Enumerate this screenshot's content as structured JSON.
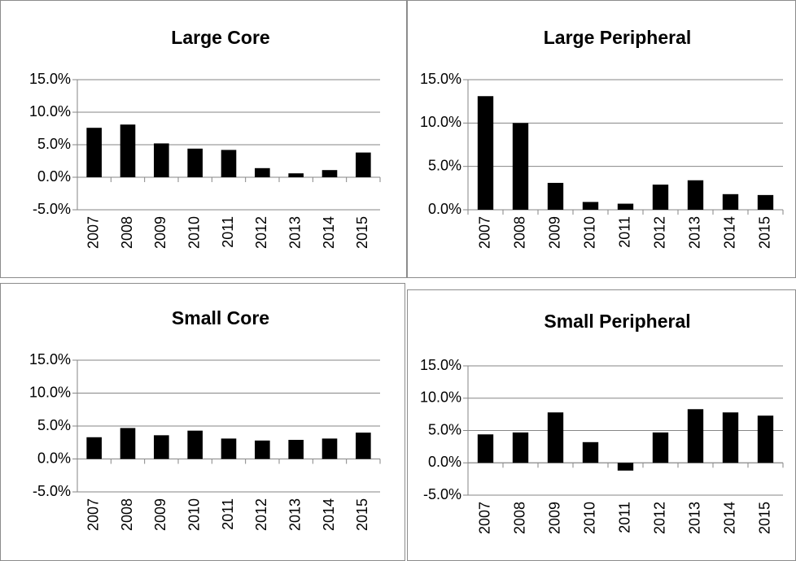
{
  "chart_data": [
    {
      "type": "bar",
      "title": "Large Core",
      "categories": [
        "2007",
        "2008",
        "2009",
        "2010",
        "2011",
        "2012",
        "2013",
        "2014",
        "2015"
      ],
      "values": [
        7.6,
        8.1,
        5.2,
        4.4,
        4.2,
        1.4,
        0.6,
        1.1,
        3.8
      ],
      "color": "#000000",
      "ylim": [
        -5,
        15
      ],
      "yticks": [
        {
          "value": -5,
          "label": "-5.0%"
        },
        {
          "value": 0,
          "label": "0.0%"
        },
        {
          "value": 5,
          "label": "5.0%"
        },
        {
          "value": 10,
          "label": "10.0%"
        },
        {
          "value": 15,
          "label": "15.0%"
        }
      ],
      "grid": true
    },
    {
      "type": "bar",
      "title": "Large Peripheral",
      "categories": [
        "2007",
        "2008",
        "2009",
        "2010",
        "2011",
        "2012",
        "2013",
        "2014",
        "2015"
      ],
      "values": [
        13.1,
        10.0,
        3.1,
        0.9,
        0.7,
        2.9,
        3.4,
        1.8,
        1.7
      ],
      "color": "#000000",
      "ylim": [
        0,
        15
      ],
      "yticks": [
        {
          "value": 0,
          "label": "0.0%"
        },
        {
          "value": 5,
          "label": "5.0%"
        },
        {
          "value": 10,
          "label": "10.0%"
        },
        {
          "value": 15,
          "label": "15.0%"
        }
      ],
      "grid": true
    },
    {
      "type": "bar",
      "title": "Small Core",
      "categories": [
        "2007",
        "2008",
        "2009",
        "2010",
        "2011",
        "2012",
        "2013",
        "2014",
        "2015"
      ],
      "values": [
        3.3,
        4.7,
        3.6,
        4.3,
        3.1,
        2.8,
        2.9,
        3.1,
        4.0
      ],
      "color": "#000000",
      "ylim": [
        -5,
        15
      ],
      "yticks": [
        {
          "value": -5,
          "label": "-5.0%"
        },
        {
          "value": 0,
          "label": "0.0%"
        },
        {
          "value": 5,
          "label": "5.0%"
        },
        {
          "value": 10,
          "label": "10.0%"
        },
        {
          "value": 15,
          "label": "15.0%"
        }
      ],
      "grid": true
    },
    {
      "type": "bar",
      "title": "Small Peripheral",
      "categories": [
        "2007",
        "2008",
        "2009",
        "2010",
        "2011",
        "2012",
        "2013",
        "2014",
        "2015"
      ],
      "values": [
        4.4,
        4.7,
        7.8,
        3.2,
        -1.2,
        4.7,
        8.3,
        7.8,
        7.3
      ],
      "color": "#000000",
      "ylim": [
        -5,
        15
      ],
      "yticks": [
        {
          "value": -5,
          "label": "-5.0%"
        },
        {
          "value": 0,
          "label": "0.0%"
        },
        {
          "value": 5,
          "label": "5.0%"
        },
        {
          "value": 10,
          "label": "10.0%"
        },
        {
          "value": 15,
          "label": "15.0%"
        }
      ],
      "grid": true
    }
  ]
}
